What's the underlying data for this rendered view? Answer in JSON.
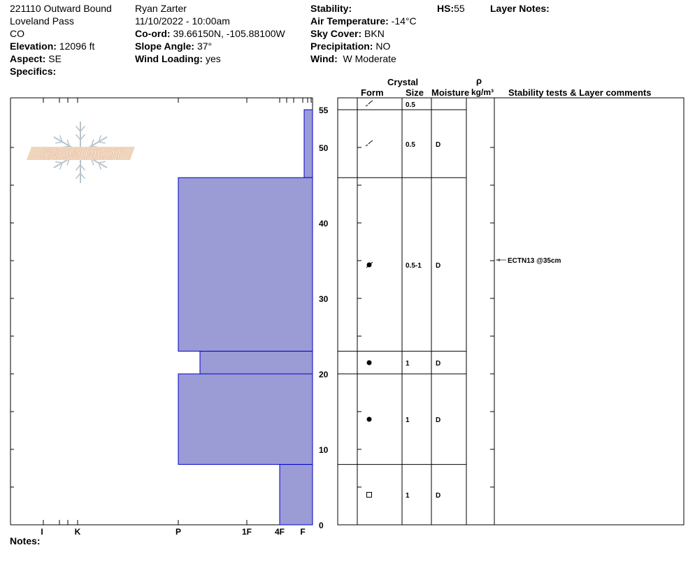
{
  "header": {
    "title": "221110 Outward Bound",
    "location": "Loveland Pass",
    "state": "CO",
    "elevation_label": "Elevation:",
    "elevation": "12096 ft",
    "aspect_label": "Aspect:",
    "aspect": "SE",
    "specifics_label": "Specifics:",
    "observer": "Ryan Zarter",
    "datetime": "11/10/2022 - 10:00am",
    "coord_label": "Co-ord:",
    "coord": "39.66150N, -105.88100W",
    "slope_label": "Slope Angle:",
    "slope": "37°",
    "wind_loading_label": "Wind Loading:",
    "wind_loading": "yes",
    "stability_label": "Stability:",
    "air_temp_label": "Air Temperature:",
    "air_temp": "-14°C",
    "sky_label": "Sky Cover:",
    "sky": "BKN",
    "precip_label": "Precipitation:",
    "precip": "NO",
    "wind_label": "Wind:",
    "wind": "W Moderate",
    "hs_label": "HS:",
    "hs": "55",
    "layer_notes_label": "Layer Notes:"
  },
  "notes_label": "Notes:",
  "logo_text": "SNOW PILOT",
  "columns": {
    "crystal": "Crystal",
    "form": "Form",
    "size": "Size",
    "moisture": "Moisture",
    "rho": "ρ",
    "density": "kg/m³",
    "comments": "Stability tests & Layer comments"
  },
  "colors": {
    "layer_fill": "#9b9bd6",
    "layer_stroke": "#0000cc"
  },
  "hardness_axis": [
    "I",
    "K",
    "P",
    "1F",
    "4F",
    "F"
  ],
  "depth_ticks": [
    0,
    10,
    20,
    30,
    40,
    50,
    55
  ],
  "layers": [
    {
      "bottom": 46,
      "top": 55,
      "hardness": "F",
      "form": "fragment-icon",
      "size": "0.5",
      "moisture": ""
    },
    {
      "bottom": 46,
      "top": 55,
      "hardness": "F",
      "form": "fragment-icon",
      "size": "0.5",
      "moisture": "D"
    },
    {
      "bottom": 23,
      "top": 46,
      "hardness": "P",
      "form": "melt-freeze-crust-icon",
      "size": "0.5-1",
      "moisture": "D"
    },
    {
      "bottom": 20,
      "top": 23,
      "hardness": "P-",
      "form": "rounded-grain-icon",
      "size": "1",
      "moisture": "D"
    },
    {
      "bottom": 8,
      "top": 20,
      "hardness": "P",
      "form": "rounded-grain-icon",
      "size": "1",
      "moisture": "D"
    },
    {
      "bottom": 0,
      "top": 8,
      "hardness": "4F",
      "form": "faceted-icon",
      "size": "1",
      "moisture": "D"
    }
  ],
  "tests": [
    {
      "depth": 35,
      "label": "ECTN13 @35cm"
    }
  ]
}
